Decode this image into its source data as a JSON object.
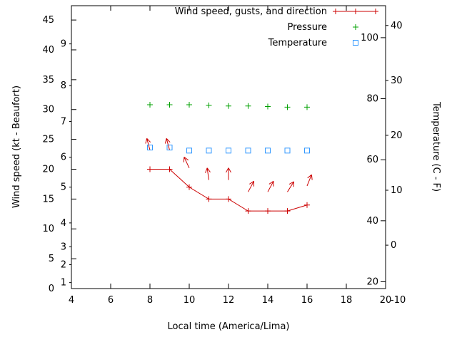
{
  "chart_data": {
    "type": "line",
    "title": "",
    "xlabel": "Local time (America/Lima)",
    "ylabel_left": "Wind speed (kt - Beaufort)",
    "ylabel_right": "Temperature (C - F)",
    "legend": [
      {
        "label": "Wind speed, gusts, and direction",
        "color": "#cc0000",
        "marker": "plus",
        "style": "linespoints"
      },
      {
        "label": "Pressure",
        "color": "#00a000",
        "marker": "plus",
        "style": "points"
      },
      {
        "label": "Temperature",
        "color": "#3399ff",
        "marker": "square-open",
        "style": "points"
      }
    ],
    "x_range": [
      4,
      20
    ],
    "x_ticks": [
      4,
      6,
      8,
      10,
      12,
      14,
      16,
      18,
      20
    ],
    "kt_range": [
      0,
      47.4
    ],
    "kt_ticks": [
      0,
      5,
      10,
      15,
      20,
      25,
      30,
      35,
      40,
      45
    ],
    "beaufort_ticks": [
      {
        "label": "1",
        "kt": 1
      },
      {
        "label": "2",
        "kt": 4
      },
      {
        "label": "3",
        "kt": 7
      },
      {
        "label": "4",
        "kt": 11
      },
      {
        "label": "5",
        "kt": 17
      },
      {
        "label": "6",
        "kt": 22
      },
      {
        "label": "7",
        "kt": 28
      },
      {
        "label": "8",
        "kt": 34
      },
      {
        "label": "9",
        "kt": 41
      }
    ],
    "celsius_range": [
      -7.9,
      43.6
    ],
    "celsius_ticks": [
      40,
      30,
      20,
      10,
      0,
      -10
    ],
    "fahrenheit_ticks": [
      100,
      80,
      60,
      40,
      20
    ],
    "hours": [
      8,
      9,
      10,
      11,
      12,
      13,
      14,
      15,
      16
    ],
    "series": {
      "wind_speed_kt": [
        20,
        20,
        17,
        15,
        15,
        13,
        13,
        13,
        14
      ],
      "pressure_plotted": [
        30.8,
        30.8,
        30.8,
        30.7,
        30.6,
        30.6,
        30.5,
        30.4,
        30.4
      ],
      "temperature_f": [
        64,
        64,
        63,
        63,
        63,
        63,
        63,
        63,
        63
      ]
    },
    "wind_direction_deg": [
      -15,
      -15,
      -25,
      -8,
      0,
      28,
      28,
      32,
      22
    ],
    "grid": false,
    "legend_position": "top-right-inside"
  },
  "colors": {
    "wind": "#cc0000",
    "pressure": "#00a000",
    "temperature": "#3399ff",
    "axis": "#000000",
    "background": "#ffffff"
  }
}
